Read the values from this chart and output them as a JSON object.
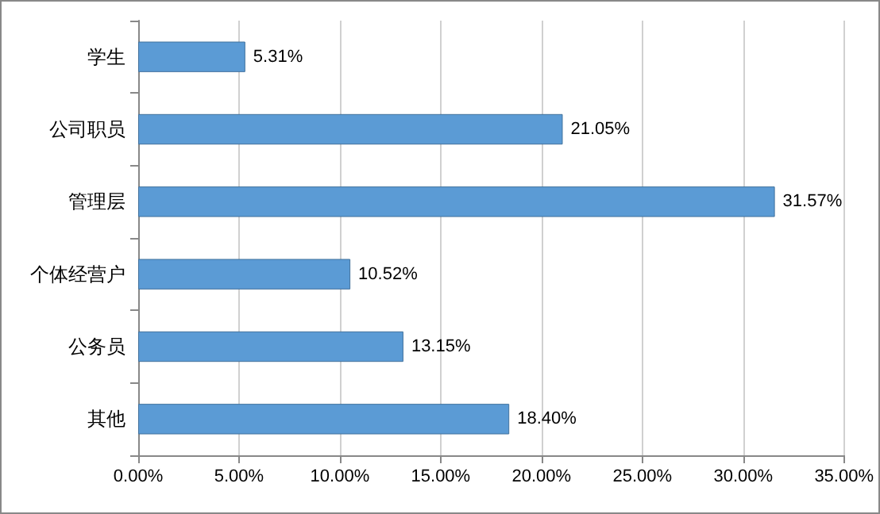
{
  "chart_data": {
    "type": "bar",
    "orientation": "horizontal",
    "categories": [
      "学生",
      "公司职员",
      "管理层",
      "个体经营户",
      "公务员",
      "其他"
    ],
    "values": [
      5.31,
      21.05,
      31.57,
      10.52,
      13.15,
      18.4
    ],
    "value_labels": [
      "5.31%",
      "21.05%",
      "31.57%",
      "10.52%",
      "13.15%",
      "18.40%"
    ],
    "color": "#5b9bd5",
    "xlim": [
      0,
      35
    ],
    "xticks": [
      {
        "value": 0,
        "label": "0.00%"
      },
      {
        "value": 5,
        "label": "5.00%"
      },
      {
        "value": 10,
        "label": "10.00%"
      },
      {
        "value": 15,
        "label": "15.00%"
      },
      {
        "value": 20,
        "label": "20.00%"
      },
      {
        "value": 25,
        "label": "25.00%"
      },
      {
        "value": 30,
        "label": "30.00%"
      },
      {
        "value": 35,
        "label": "35.00%"
      }
    ],
    "grid": "x"
  }
}
